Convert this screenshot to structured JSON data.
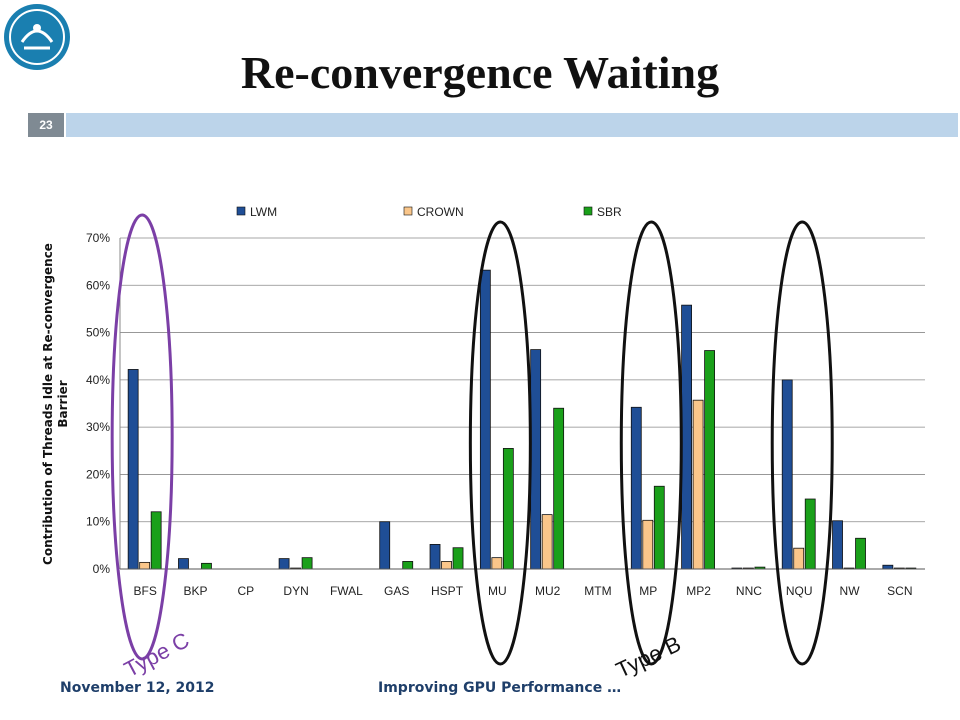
{
  "slide": {
    "title": "Re-convergence Waiting",
    "number": "23",
    "footer_date": "November 12, 2012",
    "footer_title": "Improving GPU Performance …",
    "accent_bar_color": "#bcd4ea",
    "number_box_color": "#7f8a93"
  },
  "annotations": {
    "type_c": "Type C",
    "type_b": "Type B",
    "type_c_color": "#7b3fa6",
    "type_b_color": "#111111",
    "type_c_groups": [
      "BFS"
    ],
    "type_b_groups": [
      "MU",
      "MP",
      "NQU"
    ]
  },
  "chart_data": {
    "type": "bar",
    "title": "",
    "xlabel": "",
    "ylabel": "Contribution of Threads Idle at Re-convergence Barrier",
    "ylim": [
      0,
      0.7
    ],
    "yticks": [
      0,
      0.1,
      0.2,
      0.3,
      0.4,
      0.5,
      0.6,
      0.7
    ],
    "ytick_labels": [
      "0%",
      "10%",
      "20%",
      "30%",
      "40%",
      "50%",
      "60%",
      "70%"
    ],
    "grid": true,
    "legend_position": "top",
    "categories": [
      "BFS",
      "BKP",
      "CP",
      "DYN",
      "FWAL",
      "GAS",
      "HSPT",
      "MU",
      "MU2",
      "MTM",
      "MP",
      "MP2",
      "NNC",
      "NQU",
      "NW",
      "SCN"
    ],
    "series": [
      {
        "name": "LWM",
        "color": "#1f4e96",
        "values": [
          0.422,
          0.022,
          0,
          0.022,
          0,
          0.1,
          0.052,
          0.632,
          0.464,
          0,
          0.342,
          0.558,
          0.002,
          0.4,
          0.102,
          0.008
        ]
      },
      {
        "name": "CROWN",
        "color": "#fac68a",
        "values": [
          0.014,
          0,
          0,
          0.002,
          0,
          0,
          0.016,
          0.024,
          0.115,
          0,
          0.103,
          0.357,
          0.002,
          0.044,
          0.002,
          0.002
        ]
      },
      {
        "name": "SBR",
        "color": "#1aa01a",
        "values": [
          0.121,
          0.012,
          0,
          0.024,
          0,
          0.016,
          0.045,
          0.255,
          0.34,
          0,
          0.175,
          0.462,
          0.004,
          0.148,
          0.065,
          0.002
        ]
      }
    ]
  }
}
